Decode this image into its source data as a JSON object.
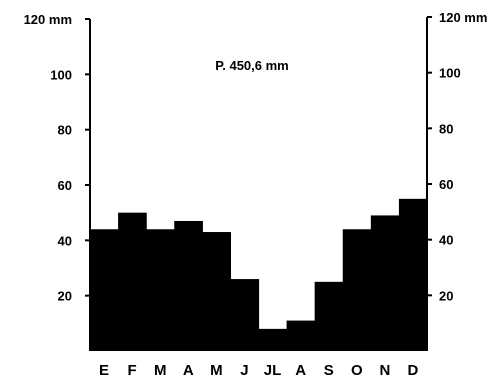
{
  "chart_data": {
    "type": "bar",
    "categories": [
      "E",
      "F",
      "M",
      "A",
      "M",
      "J",
      "JL",
      "A",
      "S",
      "O",
      "N",
      "D"
    ],
    "values": [
      44,
      50,
      44,
      47,
      43,
      26,
      8,
      11,
      25,
      44,
      49,
      55
    ],
    "title": "",
    "xlabel": "",
    "ylabel": "",
    "ylim": [
      0,
      120
    ],
    "annotation": "P. 450,6 mm",
    "grid": false,
    "left_axis": {
      "ticks": [
        {
          "value": 20,
          "label": "20"
        },
        {
          "value": 40,
          "label": "40"
        },
        {
          "value": 60,
          "label": "60"
        },
        {
          "value": 80,
          "label": "80"
        },
        {
          "value": 100,
          "label": "100"
        },
        {
          "value": 120,
          "label": "120 mm"
        }
      ]
    },
    "right_axis": {
      "ticks": [
        {
          "value": 20,
          "label": "20"
        },
        {
          "value": 40,
          "label": "40"
        },
        {
          "value": 60,
          "label": "60"
        },
        {
          "value": 80,
          "label": "80"
        },
        {
          "value": 100,
          "label": "100"
        },
        {
          "value": 120,
          "label": "120 mm"
        }
      ]
    },
    "bar_color": "#000000"
  }
}
